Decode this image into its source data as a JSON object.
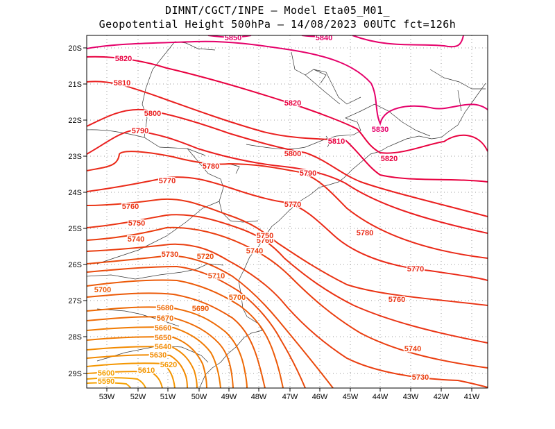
{
  "title_line1": "DIMNT/CGCT/INPE –  Model Eta05_M01_",
  "title_line2": "Geopotential Height 500hPa –  14/08/2023 00UTC fct=126h",
  "lon_labels": [
    "53W",
    "52W",
    "51W",
    "50W",
    "49W",
    "48W",
    "47W",
    "46W",
    "45W",
    "44W",
    "43W",
    "42W",
    "41W"
  ],
  "lat_labels": [
    "20S",
    "21S",
    "22S",
    "23S",
    "24S",
    "25S",
    "26S",
    "27S",
    "28S",
    "29S"
  ],
  "contour_labels": [
    "5850",
    "5840",
    "5830",
    "5820",
    "5820",
    "5820",
    "5810",
    "5810",
    "5800",
    "5800",
    "5790",
    "5790",
    "5780",
    "5780",
    "5770",
    "5770",
    "5770",
    "5760",
    "5760",
    "5760",
    "5750",
    "5750",
    "5740",
    "5740",
    "5740",
    "5730",
    "5730",
    "5720",
    "5710",
    "5700",
    "5700",
    "5690",
    "5680",
    "5670",
    "5660",
    "5650",
    "5640",
    "5630",
    "5620",
    "5610",
    "5600",
    "5590"
  ]
}
